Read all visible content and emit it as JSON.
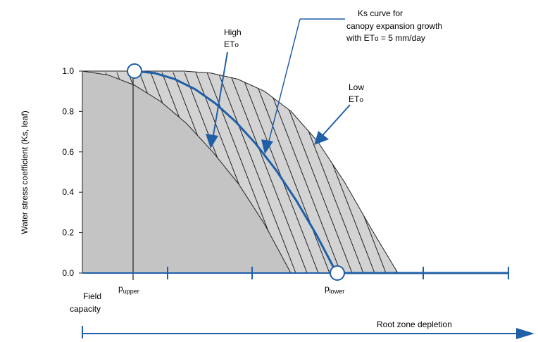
{
  "chart_data": {
    "type": "line",
    "ylabel": "Water stress coefficient (Ks, leaf)",
    "ylim": [
      0,
      1
    ],
    "y_ticks": [
      "1.0",
      "0.8",
      "0.6",
      "0.4",
      "0.2",
      "0.0"
    ],
    "x_labels": {
      "field_capacity_1": "Field",
      "field_capacity_2": "capacity",
      "p_upper_main": "p",
      "p_upper_sub": "upper",
      "p_lower_main": "p",
      "p_lower_sub": "lower"
    },
    "annotations": {
      "high_et_1": "High",
      "high_et_2": "ET",
      "high_et_sub": "o",
      "low_et_1": "Low",
      "low_et_2": "ET",
      "low_et_sub": "o",
      "ks_curve_1": "Ks curve for",
      "ks_curve_2": "canopy expansion growth",
      "ks_curve_3a": "with ET",
      "ks_curve_3sub": "o",
      "ks_curve_3b": " = 5 mm/day",
      "root_zone": "Root zone depletion"
    },
    "series": [
      {
        "key": "ks_curve",
        "x": [
          0,
          0.1,
          0.2,
          0.3,
          0.4,
          0.5,
          0.6,
          0.7,
          0.8,
          0.9,
          1.0
        ],
        "values": [
          1.0,
          0.99,
          0.96,
          0.91,
          0.84,
          0.75,
          0.64,
          0.51,
          0.36,
          0.19,
          0.0
        ]
      },
      {
        "key": "high_et_bound",
        "values": [
          1.0,
          0.98,
          0.93,
          0.85,
          0.74,
          0.6,
          0.44,
          0.24,
          0.0
        ]
      },
      {
        "key": "low_et_bound",
        "values": [
          1.0,
          0.99,
          0.96,
          0.9,
          0.8,
          0.65,
          0.45,
          0.22,
          0.0
        ]
      }
    ],
    "colors": {
      "ks_curve": "#1f5fa8",
      "fill": "#cfcfcf",
      "axis": "#1f5fa8",
      "hatch": "#222222"
    }
  }
}
